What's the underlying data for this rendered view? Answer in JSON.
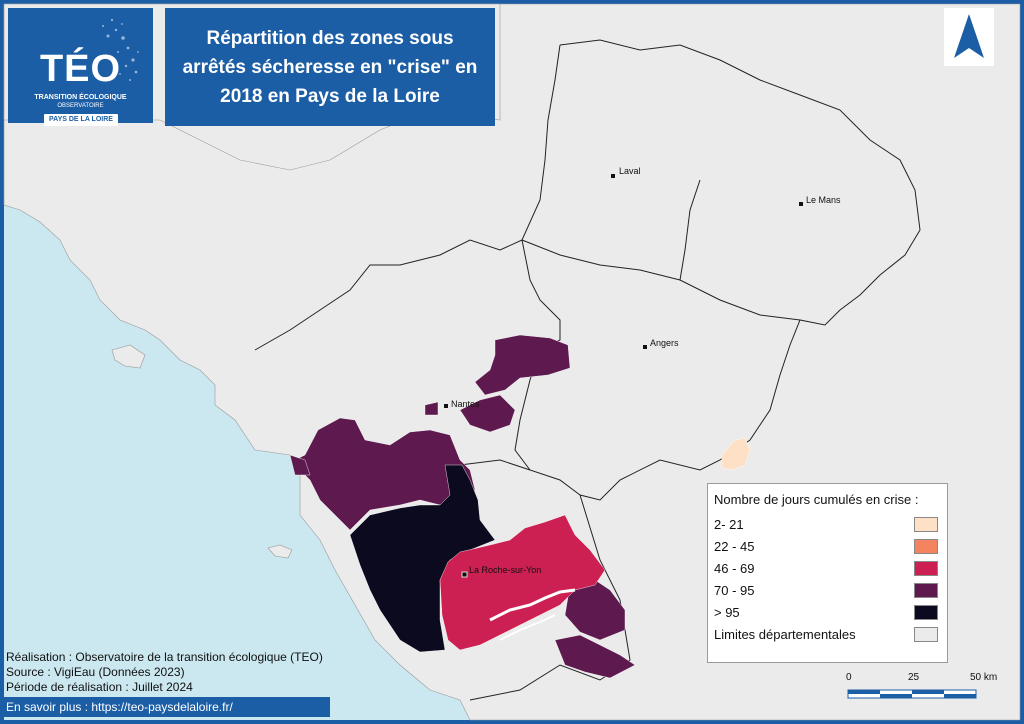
{
  "title": "Répartition des zones sous arrêtés sécheresse en \"crise\" en 2018 en Pays de la Loire",
  "logo": {
    "main": "TÉO",
    "sub1": "TRANSITION ÉCOLOGIQUE",
    "sub2": "OBSERVATOIRE",
    "region": "PAYS DE LA LOIRE"
  },
  "cities": [
    {
      "name": "Laval"
    },
    {
      "name": "Le Mans"
    },
    {
      "name": "Angers"
    },
    {
      "name": "Nantes"
    },
    {
      "name": "La Roche-sur-Yon"
    }
  ],
  "legend": {
    "title": "Nombre de jours cumulés en crise :",
    "items": [
      {
        "label": "2- 21",
        "color": "#fde0c5"
      },
      {
        "label": "22 - 45",
        "color": "#f4845f"
      },
      {
        "label": "46 - 69",
        "color": "#cc1f52"
      },
      {
        "label": "70 - 95",
        "color": "#5e1a4f"
      },
      {
        "label": "> 95",
        "color": "#0b0a1f"
      },
      {
        "label": "Limites départementales",
        "color": "#ebebeb"
      }
    ]
  },
  "colors": {
    "sea": "#cbe7ef",
    "land": "#ebebeb",
    "brand": "#1b5ea6"
  },
  "scale": {
    "labels": [
      "0",
      "25",
      "50 km"
    ]
  },
  "credits": {
    "line1": "Réalisation : Observatoire de la transition écologique (TEO)",
    "line2": "Source : VigiEau (Données 2023)",
    "line3": "Période de réalisation : Juillet 2024"
  },
  "link": "En savoir plus : https://teo-paysdelaloire.fr/"
}
